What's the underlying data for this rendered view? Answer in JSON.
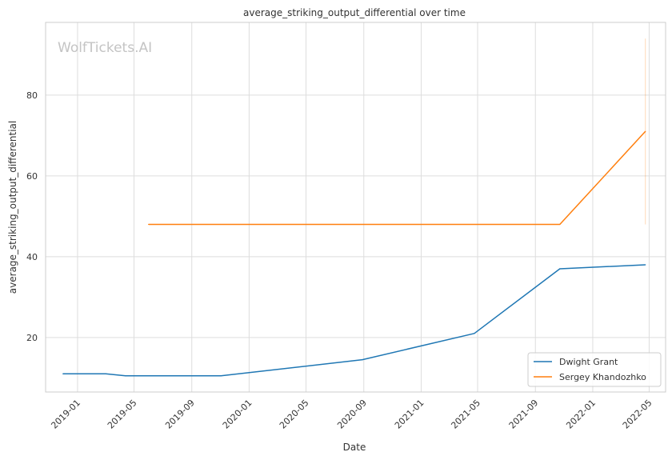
{
  "chart_data": {
    "type": "line",
    "title": "average_striking_output_differential over time",
    "xlabel": "Date",
    "ylabel": "average_striking_output_differential",
    "watermark": "WolfTickets.AI",
    "xlim": [
      "2018-10-25",
      "2022-06-05"
    ],
    "ylim": [
      6.5,
      98
    ],
    "x_ticks": [
      {
        "date": "2019-01-01",
        "label": "2019-01"
      },
      {
        "date": "2019-05-01",
        "label": "2019-05"
      },
      {
        "date": "2019-09-01",
        "label": "2019-09"
      },
      {
        "date": "2020-01-01",
        "label": "2020-01"
      },
      {
        "date": "2020-05-01",
        "label": "2020-05"
      },
      {
        "date": "2020-09-01",
        "label": "2020-09"
      },
      {
        "date": "2021-01-01",
        "label": "2021-01"
      },
      {
        "date": "2021-05-01",
        "label": "2021-05"
      },
      {
        "date": "2021-09-01",
        "label": "2021-09"
      },
      {
        "date": "2022-01-01",
        "label": "2022-01"
      },
      {
        "date": "2022-05-01",
        "label": "2022-05"
      }
    ],
    "y_ticks": [
      20,
      40,
      60,
      80
    ],
    "grid": true,
    "legend_position": "bottom-right",
    "series": [
      {
        "name": "Dwight Grant",
        "color": "#1f77b4",
        "points": [
          {
            "x": "2018-12-01",
            "y": 11
          },
          {
            "x": "2019-03-02",
            "y": 11
          },
          {
            "x": "2019-04-13",
            "y": 10.5
          },
          {
            "x": "2019-11-02",
            "y": 10.5
          },
          {
            "x": "2020-08-29",
            "y": 14.5
          },
          {
            "x": "2021-04-24",
            "y": 21
          },
          {
            "x": "2021-10-23",
            "y": 37
          },
          {
            "x": "2022-04-23",
            "y": 38
          }
        ]
      },
      {
        "name": "Sergey Khandozhko",
        "color": "#ff7f0e",
        "points": [
          {
            "x": "2019-06-01",
            "y": 48
          },
          {
            "x": "2021-10-23",
            "y": 48
          },
          {
            "x": "2022-04-23",
            "y": 71
          }
        ],
        "band": {
          "x": "2022-04-23",
          "low": 48,
          "high": 94
        }
      }
    ]
  }
}
